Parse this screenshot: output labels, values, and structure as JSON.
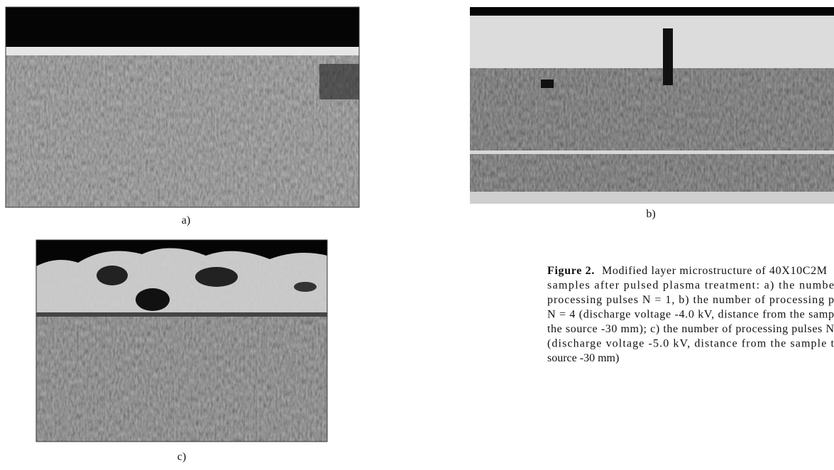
{
  "figure": {
    "panels": [
      {
        "label": "a)"
      },
      {
        "label": "b)"
      },
      {
        "label": "c)"
      }
    ],
    "caption": {
      "label": "Figure 2.",
      "lines": [
        "Modified layer microstructure of 40X10C2M",
        "samples after pulsed plasma treatment: a) the numbe",
        "processing pulses N = 1, b) the number of processing p",
        "N = 4 (discharge voltage -4.0 kV, distance from the samp",
        "the source -30 mm); c) the number of processing pulses N",
        "(discharge voltage -5.0 kV, distance from the sample t",
        "source -30 mm)"
      ]
    }
  }
}
